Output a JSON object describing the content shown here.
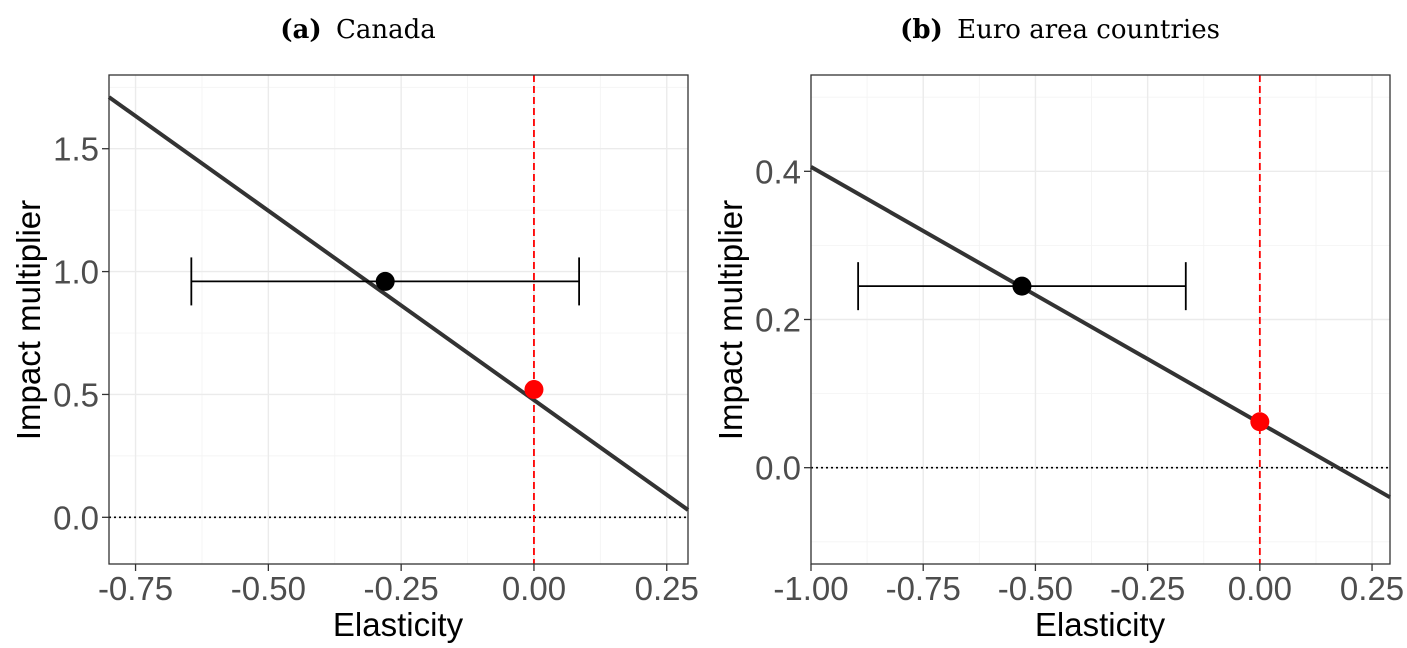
{
  "chart_data": [
    {
      "type": "line",
      "title_tag": "(a)",
      "title_text": "Canada",
      "xlabel": "Elasticity",
      "ylabel": "Impact multiplier",
      "xlim": [
        -0.8,
        0.29
      ],
      "ylim": [
        -0.19,
        1.8
      ],
      "x_ticks": [
        -0.75,
        -0.5,
        -0.25,
        0.0,
        0.25
      ],
      "x_tick_labels": [
        "-0.75",
        "-0.50",
        "-0.25",
        "0.00",
        "0.25"
      ],
      "y_ticks": [
        0.0,
        0.5,
        1.0,
        1.5
      ],
      "y_tick_labels": [
        "0.0",
        "0.5",
        "1.0",
        "1.5"
      ],
      "line": {
        "x": [
          -0.8,
          0.29
        ],
        "y": [
          1.71,
          0.03
        ],
        "color": "#333333"
      },
      "estimate_point": {
        "x": -0.28,
        "y": 0.96,
        "color": "#000000"
      },
      "error_bar": {
        "x_min": -0.645,
        "x_max": 0.085,
        "y": 0.96
      },
      "zero_point": {
        "x": 0.0,
        "y": 0.52,
        "color": "#ff0000"
      },
      "vline": {
        "x": 0.0,
        "color": "#ff0000",
        "style": "dashed"
      },
      "hline": {
        "y": 0.0,
        "color": "#000000",
        "style": "dotted"
      }
    },
    {
      "type": "line",
      "title_tag": "(b)",
      "title_text": "Euro area countries",
      "xlabel": "Elasticity",
      "ylabel": "Impact multiplier",
      "xlim": [
        -1.0,
        0.29
      ],
      "ylim": [
        -0.13,
        0.53
      ],
      "x_ticks": [
        -1.0,
        -0.75,
        -0.5,
        -0.25,
        0.0,
        0.25
      ],
      "x_tick_labels": [
        "-1.00",
        "-0.75",
        "-0.50",
        "-0.25",
        "0.00",
        "0.25"
      ],
      "y_ticks": [
        0.0,
        0.2,
        0.4
      ],
      "y_tick_labels": [
        "0.0",
        "0.2",
        "0.4"
      ],
      "line": {
        "x": [
          -1.0,
          0.29
        ],
        "y": [
          0.406,
          -0.04
        ],
        "color": "#333333"
      },
      "estimate_point": {
        "x": -0.53,
        "y": 0.245,
        "color": "#000000"
      },
      "error_bar": {
        "x_min": -0.895,
        "x_max": -0.165,
        "y": 0.245
      },
      "zero_point": {
        "x": 0.0,
        "y": 0.062,
        "color": "#ff0000"
      },
      "vline": {
        "x": 0.0,
        "color": "#ff0000",
        "style": "dashed"
      },
      "hline": {
        "y": 0.0,
        "color": "#000000",
        "style": "dotted"
      }
    }
  ]
}
